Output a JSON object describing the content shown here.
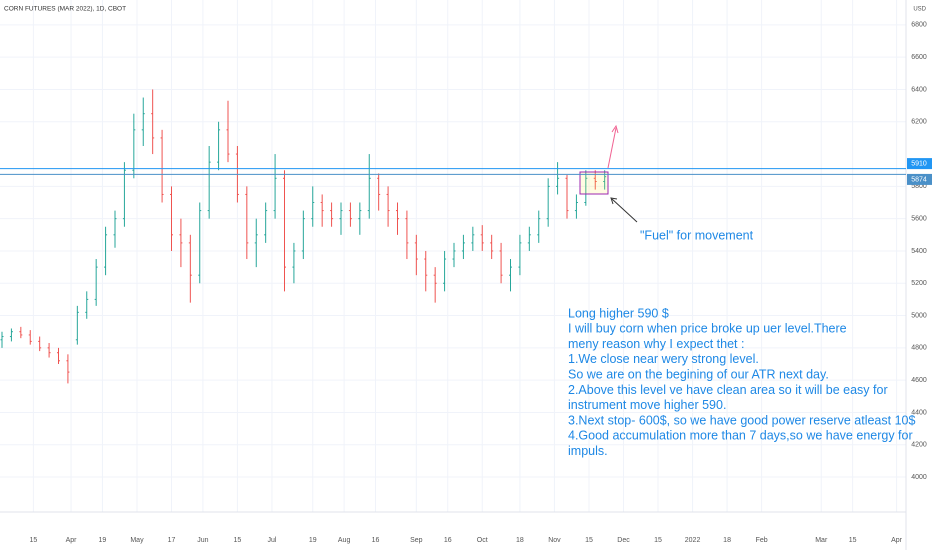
{
  "chart_data": {
    "type": "ohlc",
    "title": "CORN FUTURES (MAR 2022), 1D, CBOT",
    "currency": "USD",
    "up_color": "#26a69a",
    "down_color": "#ef5350",
    "grid": true,
    "x": [
      0,
      3,
      6,
      9,
      12,
      15,
      18,
      21,
      24,
      27,
      30,
      33,
      36,
      39,
      42,
      45,
      48,
      51,
      54,
      57,
      60,
      63,
      66,
      69,
      72,
      75,
      78,
      81,
      84,
      87,
      90,
      93,
      96,
      99,
      102,
      105,
      108,
      111,
      114,
      117,
      120,
      123,
      126,
      129,
      132,
      135,
      138,
      141,
      144,
      147,
      150,
      153,
      156,
      159,
      162,
      165,
      168,
      171,
      174,
      177,
      180,
      183,
      186,
      189,
      192
    ],
    "open": [
      4850,
      4870,
      4900,
      4880,
      4840,
      4800,
      4770,
      4720,
      4850,
      5020,
      5100,
      5300,
      5500,
      5600,
      5900,
      6150,
      6250,
      6100,
      5750,
      5500,
      5450,
      5250,
      5650,
      5950,
      6150,
      6000,
      5750,
      5450,
      5500,
      5650,
      5850,
      5300,
      5400,
      5600,
      5700,
      5650,
      5600,
      5650,
      5600,
      5650,
      5850,
      5750,
      5650,
      5600,
      5450,
      5350,
      5250,
      5200,
      5350,
      5400,
      5450,
      5500,
      5450,
      5400,
      5250,
      5300,
      5450,
      5500,
      5600,
      5800,
      5850,
      5650,
      5700,
      5850,
      5830
    ],
    "high": [
      4900,
      4920,
      4930,
      4910,
      4870,
      4830,
      4800,
      4760,
      5060,
      5150,
      5350,
      5550,
      5650,
      5950,
      6250,
      6350,
      6400,
      6150,
      5800,
      5600,
      5500,
      5700,
      6050,
      6200,
      6330,
      6050,
      5800,
      5600,
      5700,
      6000,
      5900,
      5450,
      5650,
      5800,
      5750,
      5700,
      5700,
      5700,
      5700,
      6000,
      5880,
      5800,
      5700,
      5650,
      5500,
      5400,
      5300,
      5400,
      5450,
      5500,
      5550,
      5560,
      5500,
      5450,
      5350,
      5500,
      5550,
      5650,
      5850,
      5950,
      5870,
      5750,
      5900,
      5900,
      5900
    ],
    "low": [
      4800,
      4840,
      4860,
      4820,
      4780,
      4740,
      4700,
      4580,
      4820,
      4980,
      5060,
      5250,
      5420,
      5550,
      5850,
      6050,
      6000,
      5700,
      5400,
      5300,
      5080,
      5200,
      5600,
      5900,
      5950,
      5700,
      5350,
      5300,
      5450,
      5600,
      5150,
      5200,
      5350,
      5550,
      5550,
      5550,
      5500,
      5550,
      5500,
      5600,
      5650,
      5550,
      5500,
      5350,
      5250,
      5150,
      5080,
      5150,
      5300,
      5350,
      5400,
      5400,
      5350,
      5200,
      5150,
      5250,
      5400,
      5450,
      5550,
      5750,
      5600,
      5600,
      5680,
      5780,
      5780
    ],
    "close": [
      4870,
      4900,
      4880,
      4840,
      4800,
      4770,
      4720,
      4650,
      5020,
      5100,
      5300,
      5500,
      5600,
      5900,
      6150,
      6250,
      6100,
      5750,
      5500,
      5450,
      5250,
      5650,
      5950,
      6150,
      6000,
      5750,
      5450,
      5500,
      5650,
      5850,
      5300,
      5400,
      5600,
      5700,
      5650,
      5600,
      5650,
      5600,
      5650,
      5850,
      5750,
      5650,
      5600,
      5450,
      5350,
      5250,
      5200,
      5350,
      5400,
      5450,
      5500,
      5450,
      5400,
      5250,
      5300,
      5450,
      5500,
      5600,
      5800,
      5850,
      5650,
      5700,
      5850,
      5830,
      5860
    ],
    "xlim": [
      0,
      288
    ],
    "xticks": [
      {
        "value": 10,
        "label": "15"
      },
      {
        "value": 22,
        "label": "Apr"
      },
      {
        "value": 32,
        "label": "19"
      },
      {
        "value": 43,
        "label": "May"
      },
      {
        "value": 54,
        "label": "17"
      },
      {
        "value": 64,
        "label": "Jun"
      },
      {
        "value": 75,
        "label": "15"
      },
      {
        "value": 86,
        "label": "Jul"
      },
      {
        "value": 99,
        "label": "19"
      },
      {
        "value": 109,
        "label": "Aug"
      },
      {
        "value": 119,
        "label": "16"
      },
      {
        "value": 132,
        "label": "Sep"
      },
      {
        "value": 142,
        "label": "16"
      },
      {
        "value": 153,
        "label": "Oct"
      },
      {
        "value": 165,
        "label": "18"
      },
      {
        "value": 176,
        "label": "Nov"
      },
      {
        "value": 187,
        "label": "15"
      },
      {
        "value": 198,
        "label": "Dec"
      },
      {
        "value": 209,
        "label": "15"
      },
      {
        "value": 220,
        "label": "2022"
      },
      {
        "value": 231,
        "label": "18"
      },
      {
        "value": 242,
        "label": "Feb"
      },
      {
        "value": 261,
        "label": "Mar"
      },
      {
        "value": 271,
        "label": "15"
      },
      {
        "value": 285,
        "label": "Apr"
      }
    ],
    "ylim": [
      3796,
      6954
    ],
    "yticks": [
      4000,
      4200,
      4400,
      4600,
      4800,
      5000,
      5200,
      5400,
      5600,
      5800,
      6200,
      6400,
      6600,
      6800
    ],
    "price_lines": [
      {
        "value": 5910,
        "color": "#2196f3"
      },
      {
        "value": 5874,
        "color": "#4a90c8"
      }
    ],
    "annotations": {
      "fuel": "\"Fuel\" for movement",
      "note": [
        "Long higher 590 $",
        "I will buy corn when price broke up uer level.There",
        "meny reason why I expect thet :",
        "1.We close near wery strong level.",
        "So we are on the begining of our ATR next day.",
        "2.Above this level ve have clean area so it will be easy for",
        "instrument move higher 590.",
        "3.Next stop- 600$, so we have good power reserve atleast 10$",
        "4.Good accumulation more than 7 days,so we have energy for",
        "impuls."
      ]
    }
  }
}
